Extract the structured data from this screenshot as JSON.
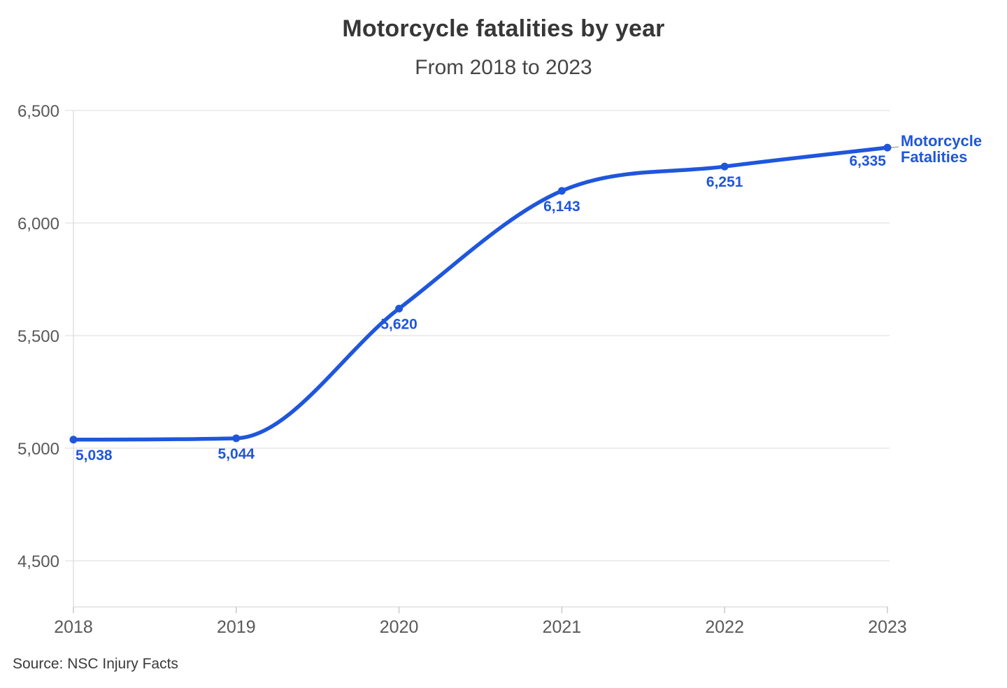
{
  "header": {
    "title": "Motorcycle fatalities by year",
    "subtitle": "From 2018 to 2023"
  },
  "chart_data": {
    "type": "line",
    "title": "Motorcycle fatalities by year",
    "subtitle": "From 2018 to 2023",
    "categories": [
      "2018",
      "2019",
      "2020",
      "2021",
      "2022",
      "2023"
    ],
    "series": [
      {
        "name": "Motorcycle Fatalities",
        "values": [
          5038,
          5044,
          5620,
          6143,
          6251,
          6335
        ],
        "color": "#1f56db"
      }
    ],
    "value_labels": [
      "5,038",
      "5,044",
      "5,620",
      "6,143",
      "6,251",
      "6,335"
    ],
    "yticks": [
      {
        "value": 4500,
        "label": "4,500"
      },
      {
        "value": 5000,
        "label": "5,000"
      },
      {
        "value": 5500,
        "label": "5,500"
      },
      {
        "value": 6000,
        "label": "6,000"
      },
      {
        "value": 6500,
        "label": "6,500"
      }
    ],
    "ylim": [
      4500,
      6500
    ],
    "xlabel": "",
    "ylabel": "",
    "grid": "horizontal",
    "legend": {
      "position": "right-of-line-end",
      "lines": [
        "Motorcycle",
        "Fatalities"
      ]
    }
  },
  "colors": {
    "accent": "#1f56db",
    "gridline": "#e7e7e7",
    "axis_line": "#e0e0e0",
    "tick_mark": "#c9c9c9",
    "tick_label": "#595959",
    "leader_line": "#bdbdbd",
    "title_text": "#373737",
    "background": "#ffffff"
  },
  "source": {
    "text": "Source: NSC Injury Facts"
  }
}
